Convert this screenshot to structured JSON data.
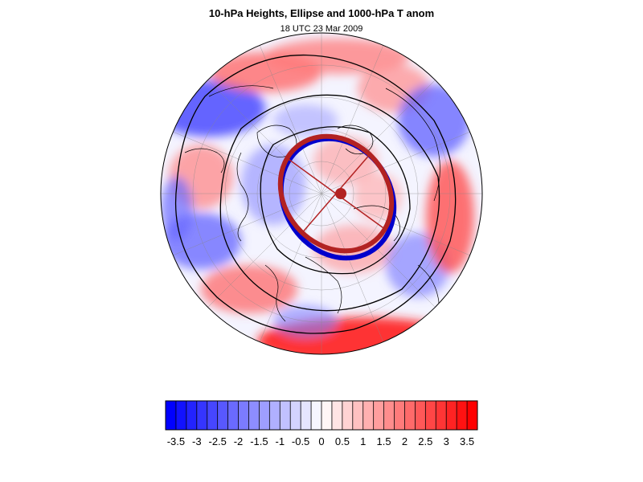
{
  "title": "10-hPa Heights, Ellipse and 1000-hPa T anom",
  "subtitle": "18 UTC 23 Mar 2009",
  "colors": {
    "negative_max": "#0000ff",
    "positive_max": "#ff0000",
    "neutral": "#ffffff",
    "ellipse_blue": "#0000cc",
    "ellipse_red": "#b22222",
    "contour": "#000000"
  },
  "colorbar": {
    "min": -3.75,
    "max": 3.75,
    "step": 0.25,
    "tick_labels": [
      "-3.5",
      "-3",
      "-2.5",
      "-2",
      "-1.5",
      "-1",
      "-0.5",
      "0",
      "0.5",
      "1",
      "1.5",
      "2",
      "2.5",
      "3",
      "3.5"
    ]
  }
}
